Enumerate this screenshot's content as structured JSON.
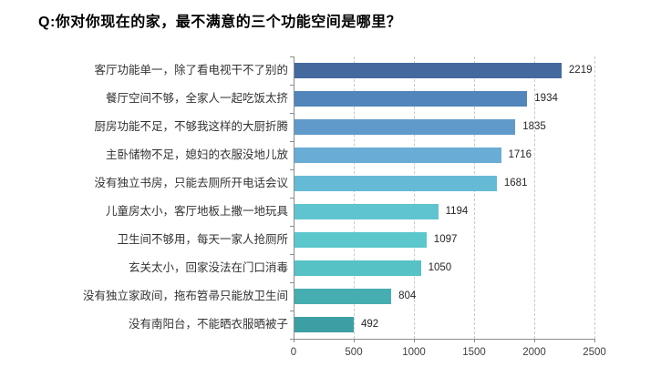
{
  "page": {
    "title": "Q:你对你现在的家，最不满意的三个功能空间是哪里？"
  },
  "chart_data": {
    "type": "bar",
    "orientation": "horizontal",
    "title": "Q:你对你现在的家，最不满意的三个功能空间是哪里？",
    "categories": [
      "客厅功能单一，除了看电视干不了别的",
      "餐厅空间不够，全家人一起吃饭太挤",
      "厨房功能不足，不够我这样的大厨折腾",
      "主卧储物不足，媳妇的衣服没地儿放",
      "没有独立书房，只能去厕所开电话会议",
      "儿童房太小，客厅地板上撒一地玩具",
      "卫生间不够用，每天一家人抢厕所",
      "玄关太小，回家没法在门口消毒",
      "没有独立家政间，拖布笤帚只能放卫生间",
      "没有南阳台，不能晒衣服晒被子"
    ],
    "values": [
      2219,
      1934,
      1835,
      1716,
      1681,
      1194,
      1097,
      1050,
      804,
      492
    ],
    "bar_colors": [
      "#44699F",
      "#5185BC",
      "#609ACB",
      "#69ADD7",
      "#65BBD6",
      "#5FC4D0",
      "#5CC7CD",
      "#57C2C5",
      "#46ADB1",
      "#3C9FA3"
    ],
    "xlabel": "",
    "ylabel": "",
    "xlim": [
      0,
      2500
    ],
    "x_ticks": [
      0,
      500,
      1000,
      1500,
      2000,
      2500
    ],
    "value_labels_shown": true,
    "grid": "vertical-dashed",
    "legend": "none",
    "colors": {
      "axis": "#8C8C8C",
      "gridline": "#C9C9C9",
      "category_label": "#333333",
      "value_label": "#262626",
      "tick_label": "#404040",
      "background": "#FFFFFF"
    }
  }
}
